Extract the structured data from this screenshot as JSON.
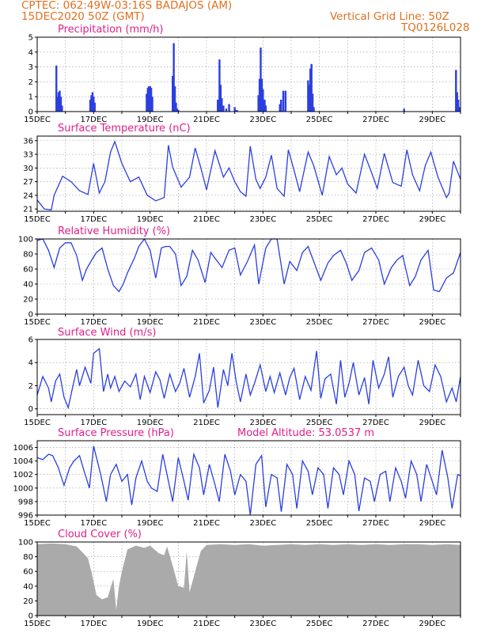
{
  "header": {
    "line1": "CPTEC:   062:49W-03:16S   BADAJOS (AM)",
    "line2": "15DEC2020 50Z (GMT)",
    "vgrid": "Vertical Grid Line: 50Z",
    "code": "TQ0126L028"
  },
  "x_labels": [
    "15DEC",
    "17DEC",
    "19DEC",
    "21DEC",
    "23DEC",
    "25DEC",
    "27DEC",
    "29DEC"
  ],
  "colors": {
    "series": "#2b3fe0",
    "title": "#e0208a",
    "header": "#e07020",
    "cloud": "#aaaaaa"
  },
  "chart_data": [
    {
      "type": "bar",
      "title": "Precipitation (mm/h)",
      "ylim": [
        0,
        5
      ],
      "yticks": [
        0,
        1,
        2,
        3,
        4,
        5
      ],
      "x_unit": "days since 15DEC",
      "x": [
        0.68,
        0.72,
        0.76,
        0.8,
        0.84,
        0.88,
        1.88,
        1.92,
        1.96,
        2.0,
        2.04,
        3.88,
        3.92,
        3.96,
        4.0,
        4.04,
        4.08,
        4.8,
        4.84,
        4.88,
        4.92,
        4.96,
        5.0,
        6.4,
        6.46,
        6.5,
        6.54,
        6.6,
        6.7,
        6.8,
        7.0,
        7.04,
        7.08,
        7.84,
        7.88,
        7.92,
        7.96,
        8.0,
        8.06,
        8.1,
        8.6,
        8.64,
        8.72,
        8.8,
        9.6,
        9.64,
        9.68,
        9.72,
        9.76,
        9.8,
        13.0,
        14.84,
        14.88,
        14.92,
        14.96
      ],
      "values": [
        3.1,
        1.0,
        1.3,
        1.4,
        1.0,
        0.4,
        0.8,
        1.1,
        1.3,
        1.0,
        0.6,
        1.2,
        1.6,
        1.7,
        1.7,
        1.6,
        1.0,
        2.4,
        4.6,
        1.7,
        0.6,
        0.2,
        0.1,
        0.8,
        3.5,
        1.8,
        0.9,
        0.4,
        0.2,
        0.5,
        0.3,
        0.1,
        0.1,
        1.1,
        2.2,
        4.3,
        2.2,
        1.5,
        0.8,
        0.4,
        0.5,
        0.8,
        1.4,
        1.4,
        2.1,
        1.8,
        2.9,
        3.2,
        1.2,
        0.3,
        0.2,
        2.8,
        1.3,
        0.8,
        0.3
      ]
    },
    {
      "type": "line",
      "title": "Surface Temperature (nC)",
      "ylim": [
        20.5,
        37
      ],
      "yticks": [
        21,
        24,
        27,
        30,
        33,
        36
      ],
      "x": [
        0,
        0.25,
        0.5,
        0.6,
        0.9,
        1.2,
        1.5,
        1.8,
        2.0,
        2.2,
        2.4,
        2.6,
        2.75,
        3.0,
        3.3,
        3.6,
        3.9,
        4.2,
        4.5,
        4.65,
        4.8,
        5.1,
        5.4,
        5.6,
        5.8,
        6.0,
        6.3,
        6.6,
        6.8,
        7.0,
        7.2,
        7.4,
        7.55,
        7.75,
        7.9,
        8.1,
        8.3,
        8.5,
        8.75,
        8.9,
        9.1,
        9.3,
        9.6,
        9.8,
        10.1,
        10.35,
        10.6,
        10.8,
        11.0,
        11.3,
        11.6,
        11.85,
        12.05,
        12.3,
        12.6,
        12.9,
        13.1,
        13.3,
        13.55,
        13.75,
        13.95,
        14.2,
        14.5,
        14.6,
        14.75,
        15.0
      ],
      "values": [
        23.0,
        21.0,
        20.8,
        24.0,
        28.2,
        27.0,
        25.0,
        24.2,
        31.0,
        24.5,
        27.0,
        33.5,
        35.8,
        31.0,
        27.0,
        28.0,
        24.0,
        22.8,
        23.5,
        35.0,
        30.2,
        25.8,
        28.0,
        34.4,
        30.0,
        25.2,
        33.8,
        28.0,
        30.0,
        27.0,
        24.8,
        23.8,
        34.8,
        27.5,
        25.5,
        28.0,
        32.8,
        25.5,
        23.8,
        34.0,
        29.5,
        24.8,
        33.5,
        30.5,
        24.0,
        32.5,
        28.5,
        30.0,
        26.5,
        24.5,
        33.0,
        29.0,
        25.5,
        33.2,
        26.8,
        26.0,
        34.0,
        28.5,
        25.0,
        30.5,
        33.5,
        28.0,
        23.5,
        24.5,
        31.5,
        27.5
      ]
    },
    {
      "type": "line",
      "title": "Relative Humidity (%)",
      "ylim": [
        0,
        100
      ],
      "yticks": [
        0,
        20,
        40,
        60,
        80,
        100
      ],
      "x": [
        0,
        0.2,
        0.4,
        0.6,
        0.8,
        1.0,
        1.2,
        1.4,
        1.6,
        1.75,
        1.9,
        2.1,
        2.3,
        2.5,
        2.7,
        2.9,
        3.05,
        3.2,
        3.45,
        3.6,
        3.8,
        4.0,
        4.2,
        4.4,
        4.55,
        4.7,
        4.9,
        5.1,
        5.3,
        5.5,
        5.7,
        5.95,
        6.15,
        6.35,
        6.55,
        6.8,
        7.0,
        7.2,
        7.45,
        7.7,
        7.85,
        8.1,
        8.3,
        8.5,
        8.75,
        8.95,
        9.2,
        9.4,
        9.6,
        9.8,
        10.05,
        10.3,
        10.5,
        10.75,
        10.95,
        11.15,
        11.4,
        11.6,
        11.85,
        12.1,
        12.3,
        12.55,
        12.75,
        12.95,
        13.2,
        13.4,
        13.6,
        13.85,
        14.05,
        14.25,
        14.5,
        14.75,
        15.0
      ],
      "values": [
        98,
        100,
        85,
        62,
        88,
        95,
        95,
        78,
        45,
        60,
        70,
        82,
        88,
        60,
        38,
        30,
        40,
        55,
        75,
        90,
        100,
        85,
        48,
        88,
        90,
        90,
        80,
        38,
        50,
        85,
        72,
        42,
        82,
        72,
        62,
        85,
        88,
        52,
        70,
        92,
        40,
        88,
        100,
        100,
        40,
        70,
        58,
        82,
        90,
        70,
        45,
        68,
        78,
        85,
        68,
        45,
        58,
        82,
        88,
        72,
        40,
        62,
        72,
        78,
        38,
        50,
        72,
        85,
        32,
        30,
        48,
        55,
        82
      ]
    },
    {
      "type": "line",
      "title": "Surface Wind (m/s)",
      "ylim": [
        -0.5,
        6
      ],
      "yticks": [
        0,
        2,
        4,
        6
      ],
      "x": [
        0,
        0.2,
        0.4,
        0.5,
        0.65,
        0.8,
        0.95,
        1.1,
        1.25,
        1.4,
        1.5,
        1.7,
        1.9,
        2.0,
        2.2,
        2.35,
        2.5,
        2.6,
        2.75,
        2.9,
        3.1,
        3.3,
        3.5,
        3.65,
        3.8,
        4.0,
        4.2,
        4.35,
        4.5,
        4.7,
        4.9,
        5.05,
        5.2,
        5.4,
        5.6,
        5.75,
        5.9,
        6.1,
        6.25,
        6.4,
        6.6,
        6.75,
        6.9,
        7.05,
        7.2,
        7.4,
        7.55,
        7.7,
        7.9,
        8.1,
        8.25,
        8.4,
        8.6,
        8.8,
        8.95,
        9.1,
        9.3,
        9.5,
        9.7,
        9.9,
        10.05,
        10.2,
        10.4,
        10.6,
        10.75,
        10.9,
        11.05,
        11.2,
        11.4,
        11.6,
        11.75,
        11.9,
        12.1,
        12.3,
        12.45,
        12.6,
        12.8,
        13.0,
        13.15,
        13.3,
        13.5,
        13.7,
        13.9,
        14.1,
        14.3,
        14.5,
        14.7,
        14.85,
        15.0
      ],
      "values": [
        1.2,
        2.8,
        1.8,
        0.6,
        2.4,
        3.0,
        1.0,
        0.1,
        1.8,
        3.4,
        2.0,
        3.6,
        2.2,
        4.8,
        5.2,
        1.5,
        3.0,
        1.8,
        2.8,
        1.5,
        2.4,
        1.9,
        3.0,
        0.8,
        2.8,
        1.4,
        3.2,
        2.5,
        0.9,
        3.0,
        1.5,
        2.2,
        3.5,
        1.0,
        2.8,
        4.8,
        0.5,
        1.6,
        3.6,
        0.1,
        3.4,
        2.0,
        4.8,
        2.4,
        0.6,
        3.0,
        1.2,
        2.2,
        3.8,
        1.5,
        2.8,
        1.4,
        3.1,
        1.2,
        2.7,
        3.5,
        0.8,
        2.8,
        1.6,
        5.0,
        0.9,
        2.6,
        3.0,
        0.4,
        4.2,
        1.0,
        2.2,
        4.0,
        1.2,
        2.7,
        0.4,
        4.2,
        1.8,
        3.0,
        4.5,
        1.0,
        2.8,
        3.6,
        2.0,
        1.2,
        4.2,
        2.0,
        1.5,
        3.8,
        2.8,
        0.6,
        1.8,
        0.6,
        2.8
      ]
    },
    {
      "type": "line",
      "title": "Surface Pressure (hPa)",
      "annotation": "Model Altitude: 53.0537 m",
      "ylim": [
        996,
        1007
      ],
      "yticks": [
        996,
        998,
        1000,
        1002,
        1004,
        1006
      ],
      "x": [
        0,
        0.2,
        0.4,
        0.55,
        0.75,
        0.95,
        1.15,
        1.3,
        1.5,
        1.7,
        1.85,
        2.0,
        2.25,
        2.45,
        2.6,
        2.8,
        3.0,
        3.2,
        3.35,
        3.5,
        3.7,
        3.9,
        4.05,
        4.25,
        4.45,
        4.6,
        4.8,
        5.0,
        5.2,
        5.35,
        5.55,
        5.75,
        5.9,
        6.1,
        6.3,
        6.45,
        6.65,
        6.85,
        7.0,
        7.2,
        7.4,
        7.55,
        7.75,
        7.95,
        8.1,
        8.3,
        8.5,
        8.65,
        8.85,
        9.05,
        9.2,
        9.4,
        9.6,
        9.75,
        9.95,
        10.15,
        10.3,
        10.5,
        10.7,
        10.85,
        11.05,
        11.25,
        11.4,
        11.6,
        11.8,
        11.95,
        12.15,
        12.35,
        12.5,
        12.7,
        12.9,
        13.05,
        13.25,
        13.45,
        13.6,
        13.8,
        14.0,
        14.15,
        14.35,
        14.55,
        14.7,
        14.9,
        15.0
      ],
      "values": [
        1004.5,
        1004.2,
        1005.0,
        1004.8,
        1003.0,
        1000.4,
        1003.0,
        1004.0,
        1004.8,
        1002.0,
        1000.0,
        1006.2,
        1002.0,
        998.0,
        1002.0,
        1003.5,
        1001.0,
        1002.0,
        997.5,
        1001.5,
        1004.0,
        1001.0,
        1000.0,
        999.5,
        1005.0,
        1002.0,
        998.0,
        1004.5,
        1001.0,
        998.2,
        1005.0,
        1003.0,
        999.0,
        1003.5,
        1000.5,
        998.0,
        1005.0,
        1002.5,
        999.0,
        1002.0,
        1001.0,
        996.0,
        1003.5,
        1004.8,
        997.2,
        1002.0,
        1001.5,
        996.5,
        1003.5,
        1002.0,
        997.0,
        1004.0,
        1002.5,
        999.0,
        1003.0,
        1002.0,
        997.0,
        1003.0,
        1002.0,
        999.0,
        1004.0,
        1002.0,
        996.6,
        1001.5,
        1001.0,
        998.0,
        1002.0,
        1002.5,
        998.0,
        1003.0,
        1001.0,
        998.5,
        1004.0,
        1002.0,
        998.0,
        1003.5,
        1001.0,
        999.0,
        1005.6,
        1001.5,
        997.0,
        1002.0,
        1001.8
      ]
    },
    {
      "type": "area",
      "title": "Cloud Cover (%)",
      "ylim": [
        0,
        100
      ],
      "yticks": [
        0,
        20,
        40,
        60,
        80,
        100
      ],
      "x": [
        0,
        0.5,
        1.0,
        1.4,
        1.6,
        1.8,
        1.95,
        2.1,
        2.3,
        2.5,
        2.7,
        2.8,
        2.9,
        3.0,
        3.2,
        3.5,
        3.8,
        4.0,
        4.3,
        4.5,
        4.6,
        4.8,
        5.0,
        5.2,
        5.3,
        5.4,
        5.6,
        5.8,
        6.0,
        6.5,
        7.0,
        7.5,
        8.0,
        8.5,
        9.0,
        9.5,
        10.0,
        10.5,
        11.0,
        11.5,
        12.0,
        12.5,
        13.0,
        13.5,
        14.0,
        14.5,
        15.0
      ],
      "values": [
        97,
        98,
        97,
        94,
        86,
        78,
        55,
        28,
        22,
        25,
        50,
        8,
        40,
        60,
        90,
        95,
        92,
        95,
        85,
        82,
        94,
        68,
        40,
        38,
        88,
        32,
        60,
        88,
        96,
        97,
        96,
        97,
        95,
        96,
        97,
        96,
        97,
        96,
        97,
        96,
        97,
        96,
        97,
        97,
        96,
        97,
        96
      ]
    }
  ]
}
